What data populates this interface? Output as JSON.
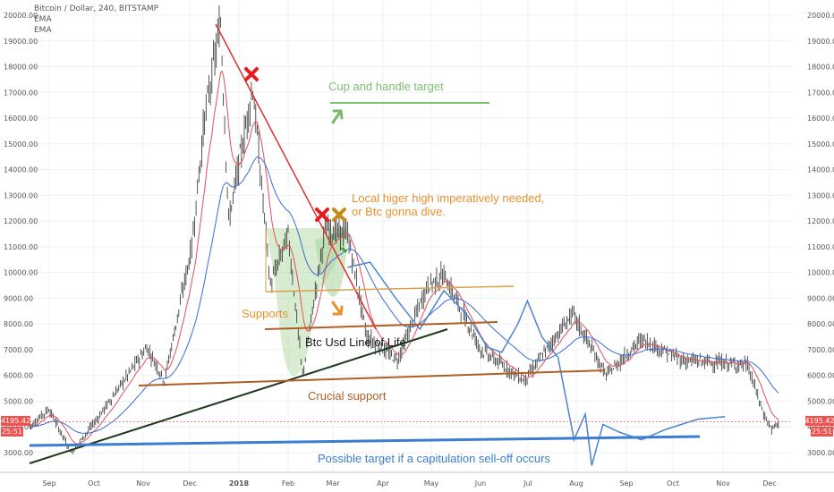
{
  "header": {
    "title": "Bitcoin / Dollar, 240, BITSTAMP",
    "ema1": "EMA",
    "ema2": "EMA"
  },
  "price_badges": {
    "left_price": "4195.42",
    "left_time": "25:51",
    "right_price": "4195.42",
    "right_time": "25:51"
  },
  "chart_data": {
    "type": "line",
    "title": "Bitcoin / Dollar, 240, BITSTAMP",
    "ylim": [
      2500,
      20400
    ],
    "x_ticks": [
      "Sep",
      "Oct",
      "Nov",
      "Dec",
      "2018",
      "Feb",
      "Mar",
      "Apr",
      "May",
      "Jun",
      "Jul",
      "Aug",
      "Sep",
      "Oct",
      "Nov",
      "Dec"
    ],
    "y_ticks": [
      3000,
      4000,
      5000,
      6000,
      7000,
      8000,
      9000,
      10000,
      11000,
      12000,
      13000,
      14000,
      15000,
      16000,
      17000,
      18000,
      19000,
      20000
    ],
    "last_price": 4195.42,
    "price_path": [
      [
        "Aug 20",
        4000
      ],
      [
        "Sep 1",
        4700
      ],
      [
        "Sep 15",
        3000
      ],
      [
        "Oct 1",
        4300
      ],
      [
        "Oct 20",
        6000
      ],
      [
        "Nov 1",
        7100
      ],
      [
        "Nov 12",
        5800
      ],
      [
        "Nov 29",
        11000
      ],
      [
        "Dec 7",
        16000
      ],
      [
        "Dec 17",
        19700
      ],
      [
        "Dec 22",
        12000
      ],
      [
        "Jan 6",
        17200
      ],
      [
        "Jan 17",
        9500
      ],
      [
        "Jan 28",
        11500
      ],
      [
        "Feb 6",
        6000
      ],
      [
        "Feb 20",
        11700
      ],
      [
        "Mar 6",
        11500
      ],
      [
        "Mar 18",
        7500
      ],
      [
        "Apr 6",
        6600
      ],
      [
        "Apr 25",
        9500
      ],
      [
        "May 5",
        9900
      ],
      [
        "May 28",
        7000
      ],
      [
        "Jun 24",
        5800
      ],
      [
        "Jul 24",
        8400
      ],
      [
        "Aug 14",
        6000
      ],
      [
        "Sep 5",
        7400
      ],
      [
        "Sep 30",
        6600
      ],
      [
        "Nov 10",
        6400
      ],
      [
        "Nov 20",
        4500
      ],
      [
        "Nov 25",
        3900
      ],
      [
        "Nov 30",
        4195
      ]
    ],
    "projection_path": [
      [
        "Mar 6",
        10200
      ],
      [
        "Mar 20",
        10400
      ],
      [
        "Apr 5",
        9000
      ],
      [
        "Apr 20",
        7800
      ],
      [
        "May 5",
        9300
      ],
      [
        "May 20",
        8300
      ],
      [
        "Jun 1",
        7100
      ],
      [
        "Jun 10",
        6900
      ],
      [
        "Jun 20",
        8000
      ],
      [
        "Jun 26",
        8900
      ],
      [
        "Jul 5",
        7500
      ],
      [
        "Jul 15",
        6700
      ],
      [
        "Jul 25",
        3500
      ],
      [
        "Aug 1",
        4500
      ],
      [
        "Aug 5",
        2500
      ],
      [
        "Aug 12",
        4100
      ],
      [
        "Aug 22",
        3800
      ],
      [
        "Sep 5",
        3500
      ],
      [
        "Sep 20",
        3900
      ],
      [
        "Oct 10",
        4300
      ],
      [
        "Oct 27",
        4400
      ]
    ],
    "annotations": {
      "cup_target": "Cup and handle target",
      "local_high_1": "Local higer high imperatively needed,",
      "local_high_2": " or Btc gonna dive.",
      "supports": "Supports",
      "line_of_life": "Btc Usd Line of Life",
      "crucial": "Crucial support",
      "capitulation": "Possible target if a capitulation sell-off occurs"
    },
    "colors": {
      "price": "#2a2a2a",
      "ema_fast": "#e0505a",
      "ema_slow": "#3a6bd6",
      "projection": "#4a85d0",
      "downtrend": "#e03030",
      "cup_fill": "#a8d49a",
      "cup_target": "#7fbf70",
      "orange_text": "#e8912e",
      "supports_line": "#d9a24a",
      "brown_line": "#b05e22",
      "line_of_life": "#1d3a1c",
      "capitulation": "#3b7dd0",
      "badge": "#ef5350",
      "x_red": "#e81c1c",
      "x_gold": "#c48a1a"
    }
  }
}
